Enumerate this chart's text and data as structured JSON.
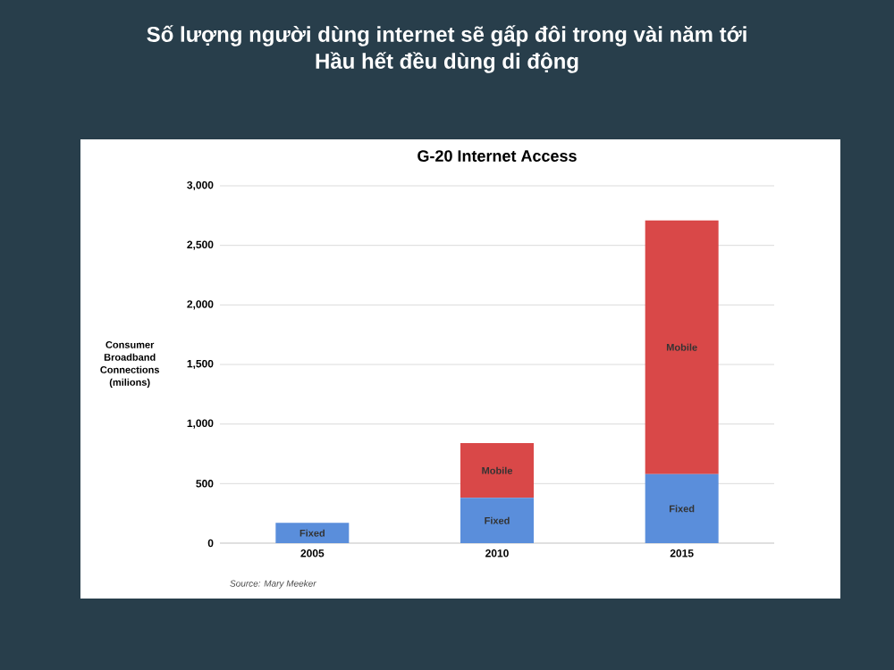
{
  "chart_data": {
    "type": "bar",
    "stacked": true,
    "title": "G-20 Internet Access",
    "ylabel": "Consumer Broadband Connections (milions)",
    "categories": [
      "2005",
      "2010",
      "2015"
    ],
    "series": [
      {
        "name": "Fixed",
        "color": "#5a8edb",
        "values": [
          170,
          380,
          580
        ]
      },
      {
        "name": "Mobile",
        "color": "#d94848",
        "values": [
          null,
          460,
          2130
        ]
      }
    ],
    "ylim": [
      0,
      3000
    ],
    "yticks": [
      0,
      500,
      {
        "value": 1000,
        "label": "1,000"
      },
      {
        "value": 1500,
        "label": "1,500"
      },
      {
        "value": 2000,
        "label": "2,000"
      },
      {
        "value": 2500,
        "label": "2,500"
      },
      {
        "value": 3000,
        "label": "3,000"
      }
    ],
    "grid": "y",
    "annotations": [
      "Số lượng người dùng internet sẽ gấp đôi trong vài năm tới",
      "Hầu hết đều dùng di động",
      "Source: Mary Meeker"
    ]
  }
}
